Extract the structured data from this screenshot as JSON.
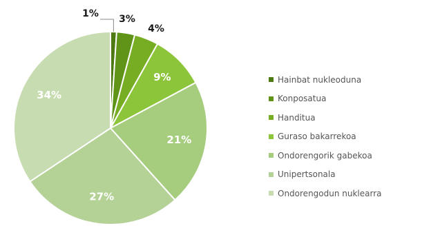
{
  "chart_data": {
    "type": "pie",
    "title": "",
    "legend_position": "right",
    "series": [
      {
        "values": [
          1,
          3,
          4,
          9,
          21,
          27,
          34
        ],
        "labels": [
          "1%",
          "3%",
          "4%",
          "9%",
          "21%",
          "27%",
          "34%"
        ]
      }
    ],
    "categories": [
      "Hainbat nukleoduna",
      "Konposatua",
      "Handitua",
      "Guraso bakarrekoa",
      "Ondorengorik gabekoa",
      "Unipertsonala",
      "Ondorengodun nuklearra"
    ],
    "colors": [
      "#4d7a12",
      "#5f9418",
      "#76ad22",
      "#8cc43a",
      "#a6cd7e",
      "#b4d196",
      "#c7dcb0"
    ]
  }
}
